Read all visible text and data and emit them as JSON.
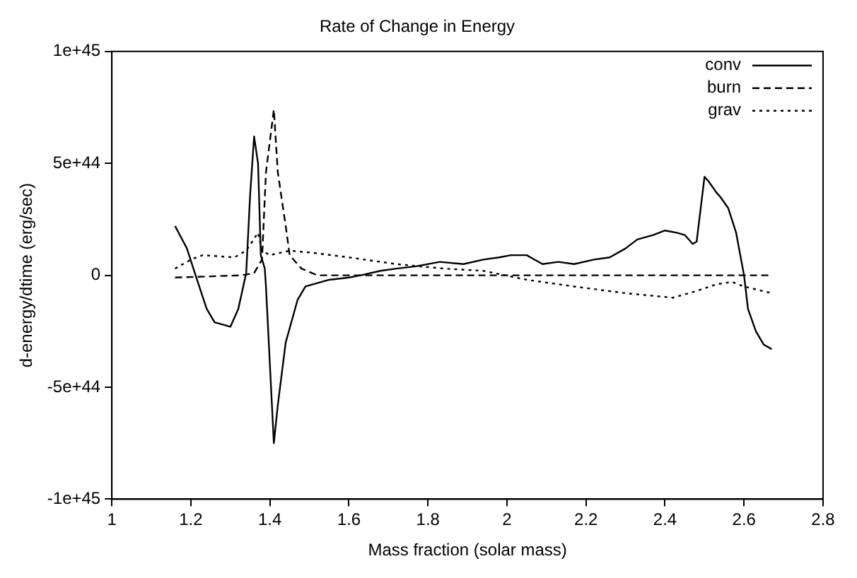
{
  "chart_data": {
    "type": "line",
    "title": "Rate of Change in Energy",
    "xlabel": "Mass fraction (solar mass)",
    "ylabel": "d-energy/dtime (erg/sec)",
    "xlim": [
      1,
      2.8
    ],
    "xticks": [
      1,
      1.2,
      1.4,
      1.6,
      1.8,
      2,
      2.2,
      2.4,
      2.6,
      2.8
    ],
    "ylim": [
      -1e+45,
      1e+45
    ],
    "yticks": [
      {
        "value": -1e+45,
        "label": "-1e+45"
      },
      {
        "value": -5e+44,
        "label": "-5e+44"
      },
      0,
      {
        "value": 5e+44,
        "label": "5e+44"
      },
      {
        "value": 1e+45,
        "label": "1e+45"
      }
    ],
    "grid": false,
    "legend": "top right",
    "marker": "none",
    "series": [
      {
        "name": "conv",
        "color": "#000000",
        "line_style": "solid",
        "x": [
          1.16,
          1.19,
          1.21,
          1.24,
          1.26,
          1.3,
          1.32,
          1.34,
          1.35,
          1.36,
          1.37,
          1.377,
          1.387,
          1.39,
          1.41,
          1.42,
          1.44,
          1.47,
          1.49,
          1.55,
          1.6,
          1.63,
          1.68,
          1.72,
          1.77,
          1.83,
          1.89,
          1.94,
          1.98,
          2.01,
          2.05,
          2.07,
          2.09,
          2.13,
          2.17,
          2.22,
          2.26,
          2.3,
          2.33,
          2.37,
          2.4,
          2.43,
          2.45,
          2.47,
          2.48,
          2.5,
          2.51,
          2.53,
          2.54,
          2.56,
          2.58,
          2.6,
          2.61,
          2.63,
          2.65,
          2.67
        ],
        "values": [
          2.2e+44,
          1.2e+44,
          1e+43,
          -1.5e+44,
          -2.1e+44,
          -2.3e+44,
          -1.5e+44,
          1e+43,
          3.6e+44,
          6.2e+44,
          5e+44,
          9e+43,
          3e+43,
          -5e+43,
          -7.5e+44,
          -5.8e+44,
          -3e+44,
          -1.1e+44,
          -5e+43,
          -2e+43,
          -1e+43,
          0,
          2e+43,
          3e+43,
          4e+43,
          6e+43,
          5e+43,
          7e+43,
          8e+43,
          9e+43,
          9e+43,
          7e+43,
          5e+43,
          6e+43,
          5e+43,
          7e+43,
          8e+43,
          1.2e+44,
          1.6e+44,
          1.8e+44,
          2e+44,
          1.9e+44,
          1.8e+44,
          1.4e+44,
          1.5e+44,
          4.4e+44,
          4.2e+44,
          3.7e+44,
          3.5e+44,
          3e+44,
          1.9e+44,
          0,
          -1.5e+44,
          -2.5e+44,
          -3.1e+44,
          -3.3e+44
        ]
      },
      {
        "name": "burn",
        "color": "#000000",
        "line_style": "dashed",
        "x": [
          1.16,
          1.33,
          1.36,
          1.38,
          1.39,
          1.41,
          1.42,
          1.44,
          1.45,
          1.48,
          1.52,
          1.6,
          2.67
        ],
        "values": [
          -1e+43,
          0,
          1e+43,
          7e+43,
          4.6e+44,
          7.4e+44,
          4.6e+44,
          2.2e+44,
          9e+43,
          3e+43,
          0,
          0,
          0
        ]
      },
      {
        "name": "grav",
        "color": "#000000",
        "line_style": "dotted",
        "x": [
          1.16,
          1.2,
          1.23,
          1.31,
          1.34,
          1.37,
          1.38,
          1.4,
          1.45,
          1.51,
          1.6,
          1.72,
          1.84,
          1.94,
          2.05,
          2.17,
          2.3,
          2.42,
          2.48,
          2.53,
          2.57,
          2.6,
          2.67
        ],
        "values": [
          3e+43,
          7e+43,
          9e+43,
          8e+43,
          1.1e+44,
          1.9e+44,
          1.1e+44,
          9e+43,
          1.1e+44,
          1e+44,
          8e+43,
          5e+43,
          3e+43,
          2e+43,
          -2e+43,
          -5e+43,
          -8e+43,
          -1e+44,
          -7e+43,
          -4e+43,
          -3e+43,
          -5e+43,
          -8e+43
        ]
      }
    ]
  }
}
